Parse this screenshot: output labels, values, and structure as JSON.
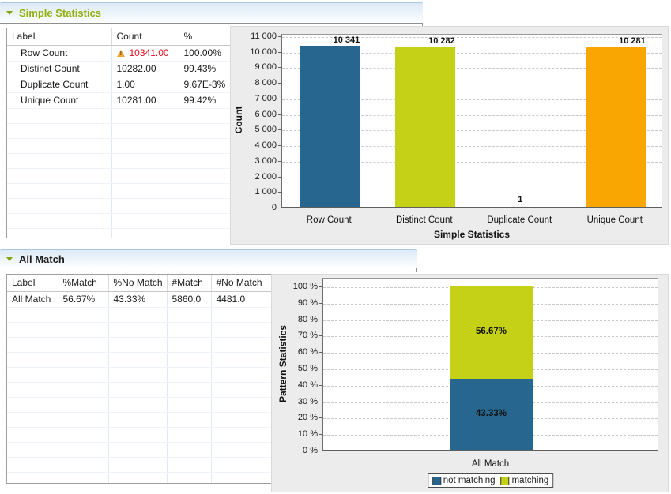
{
  "sections": [
    {
      "title": "Simple Statistics",
      "collapse_icon": "triangle-down",
      "table": {
        "columns": [
          "Label",
          "Count",
          "%"
        ],
        "rows": [
          [
            {
              "text": "Row Count",
              "indent": true
            },
            {
              "text": "10341.00",
              "warning": true,
              "alert": true
            },
            {
              "text": "100.00%"
            }
          ],
          [
            {
              "text": "Distinct Count",
              "indent": true
            },
            {
              "text": "10282.00"
            },
            {
              "text": "99.43%"
            }
          ],
          [
            {
              "text": "Duplicate Count",
              "indent": true
            },
            {
              "text": "1.00"
            },
            {
              "text": "9.67E-3%"
            }
          ],
          [
            {
              "text": "Unique Count",
              "indent": true
            },
            {
              "text": "10281.00"
            },
            {
              "text": "99.42%"
            }
          ]
        ],
        "empty_rows": 9
      }
    },
    {
      "title": "All Match",
      "collapse_icon": "triangle-down",
      "table": {
        "columns": [
          "Label",
          "%Match",
          "%No Match",
          "#Match",
          "#No Match"
        ],
        "rows": [
          [
            {
              "text": "All Match"
            },
            {
              "text": "56.67%"
            },
            {
              "text": "43.33%"
            },
            {
              "text": "5860.0"
            },
            {
              "text": "4481.0"
            }
          ]
        ],
        "empty_rows": 12
      }
    }
  ],
  "colors": {
    "section_title_green": "#94af0a",
    "bar_blue": "#27678f",
    "bar_green": "#c4d117",
    "bar_orange": "#f9a602",
    "alert_red": "#e30b1c",
    "panel_bg": "#ececec"
  },
  "chart_data": [
    {
      "type": "bar",
      "title": "",
      "xlabel": "Simple Statistics",
      "ylabel": "Count",
      "categories": [
        "Row Count",
        "Distinct Count",
        "Duplicate Count",
        "Unique Count"
      ],
      "values": [
        10341,
        10282,
        1,
        10281
      ],
      "value_labels": [
        "10 341",
        "10 282",
        "1",
        "10 281"
      ],
      "bar_colors": [
        "#27678f",
        "#c4d117",
        "#27678f",
        "#f9a602"
      ],
      "ylim": [
        0,
        11000
      ],
      "ytick_step": 1000,
      "ytick_labels": [
        "11 000",
        "10 000",
        "9 000",
        "8 000",
        "7 000",
        "6 000",
        "5 000",
        "4 000",
        "3 000",
        "2 000",
        "1 000",
        "0"
      ],
      "grid": "dashed-horizontal",
      "legend_position": "none"
    },
    {
      "type": "stacked-bar",
      "title": "",
      "xlabel": "",
      "ylabel": "Pattern Statistics",
      "categories": [
        "All Match"
      ],
      "series": [
        {
          "name": "not matching",
          "values": [
            43.33
          ],
          "color": "#27678f",
          "segment_labels": [
            "43.33%"
          ]
        },
        {
          "name": "matching",
          "values": [
            56.67
          ],
          "color": "#c4d117",
          "segment_labels": [
            "56.67%"
          ]
        }
      ],
      "ylim": [
        0,
        100
      ],
      "ytick_step": 10,
      "ytick_labels": [
        "100 %",
        "90 %",
        "80 %",
        "70 %",
        "60 %",
        "50 %",
        "40 %",
        "30 %",
        "20 %",
        "10 %",
        "0 %"
      ],
      "grid": "dashed-horizontal",
      "legend_position": "bottom"
    }
  ]
}
